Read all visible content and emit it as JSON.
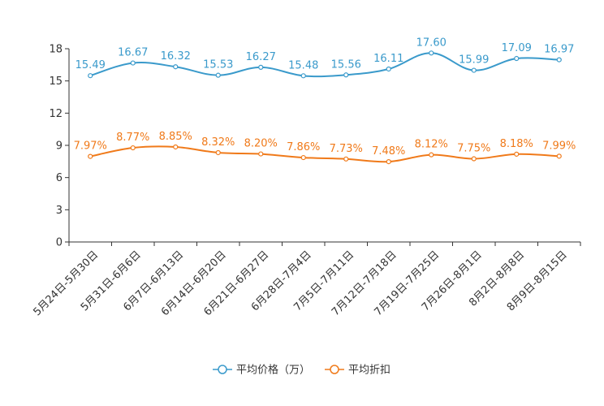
{
  "chart_data": {
    "type": "line",
    "title": "",
    "xlabel": "",
    "ylabel": "",
    "ylim": [
      0,
      18
    ],
    "yticks": [
      0,
      3,
      6,
      9,
      12,
      15,
      18
    ],
    "grid": false,
    "legend_position": "bottom-center",
    "categories": [
      "5月24日-5月30日",
      "5月31日-6月6日",
      "6月7日-6月13日",
      "6月14日-6月20日",
      "6月21日-6月27日",
      "6月28日-7月4日",
      "7月5日-7月11日",
      "7月12日-7月18日",
      "7月19日-7月25日",
      "7月26日-8月1日",
      "8月2日-8月8日",
      "8月9日-8月15日"
    ],
    "series": [
      {
        "name": "平均价格（万）",
        "color": "#3a9acb",
        "values": [
          15.49,
          16.67,
          16.32,
          15.53,
          16.27,
          15.48,
          15.56,
          16.11,
          17.6,
          15.99,
          17.09,
          16.97
        ],
        "labels": [
          "15.49",
          "16.67",
          "16.32",
          "15.53",
          "16.27",
          "15.48",
          "15.56",
          "16.11",
          "17.60",
          "15.99",
          "17.09",
          "16.97"
        ]
      },
      {
        "name": "平均折扣",
        "color": "#f07a1a",
        "values": [
          7.97,
          8.77,
          8.85,
          8.32,
          8.2,
          7.86,
          7.73,
          7.48,
          8.12,
          7.75,
          8.18,
          7.99
        ],
        "labels": [
          "7.97%",
          "8.77%",
          "8.85%",
          "8.32%",
          "8.20%",
          "7.86%",
          "7.73%",
          "7.48%",
          "8.12%",
          "7.75%",
          "8.18%",
          "7.99%"
        ]
      }
    ]
  }
}
